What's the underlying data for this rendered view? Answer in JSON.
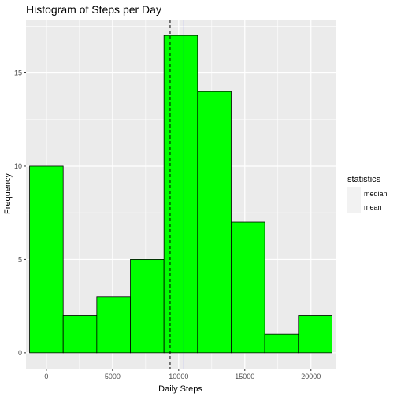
{
  "chart_data": {
    "type": "bar",
    "title": "Histogram of Steps per Day",
    "xlabel": "Daily Steps",
    "ylabel": "Frequency",
    "bin_width": 2540,
    "bins": [
      {
        "start": -1270,
        "end": 1270,
        "count": 10
      },
      {
        "start": 1270,
        "end": 3810,
        "count": 2
      },
      {
        "start": 3810,
        "end": 6350,
        "count": 3
      },
      {
        "start": 6350,
        "end": 8890,
        "count": 5
      },
      {
        "start": 8890,
        "end": 11430,
        "count": 17
      },
      {
        "start": 11430,
        "end": 13970,
        "count": 14
      },
      {
        "start": 13970,
        "end": 16510,
        "count": 7
      },
      {
        "start": 16510,
        "end": 19050,
        "count": 1
      },
      {
        "start": 19050,
        "end": 21590,
        "count": 2
      }
    ],
    "xlim": [
      -1540,
      21860
    ],
    "ylim": [
      -0.85,
      17.85
    ],
    "xticks": [
      0,
      5000,
      10000,
      15000,
      20000
    ],
    "xtick_labels": [
      "0",
      "5000",
      "10000",
      "15000",
      "20000"
    ],
    "yticks": [
      0,
      5,
      10,
      15
    ],
    "ytick_labels": [
      "0",
      "5",
      "10",
      "15"
    ],
    "grid": true,
    "bar_fill": "#00ff00",
    "bar_outline": "#000000",
    "panel_background": "#ebebeb",
    "grid_color": "#ffffff",
    "reference_lines": [
      {
        "name": "median",
        "value": 10395,
        "color": "#0000ff",
        "style": "solid"
      },
      {
        "name": "mean",
        "value": 9354,
        "color": "#000000",
        "style": "dashed"
      }
    ],
    "legend": {
      "title": "statistics",
      "placement": "right",
      "entries": [
        "median",
        "mean"
      ]
    }
  }
}
